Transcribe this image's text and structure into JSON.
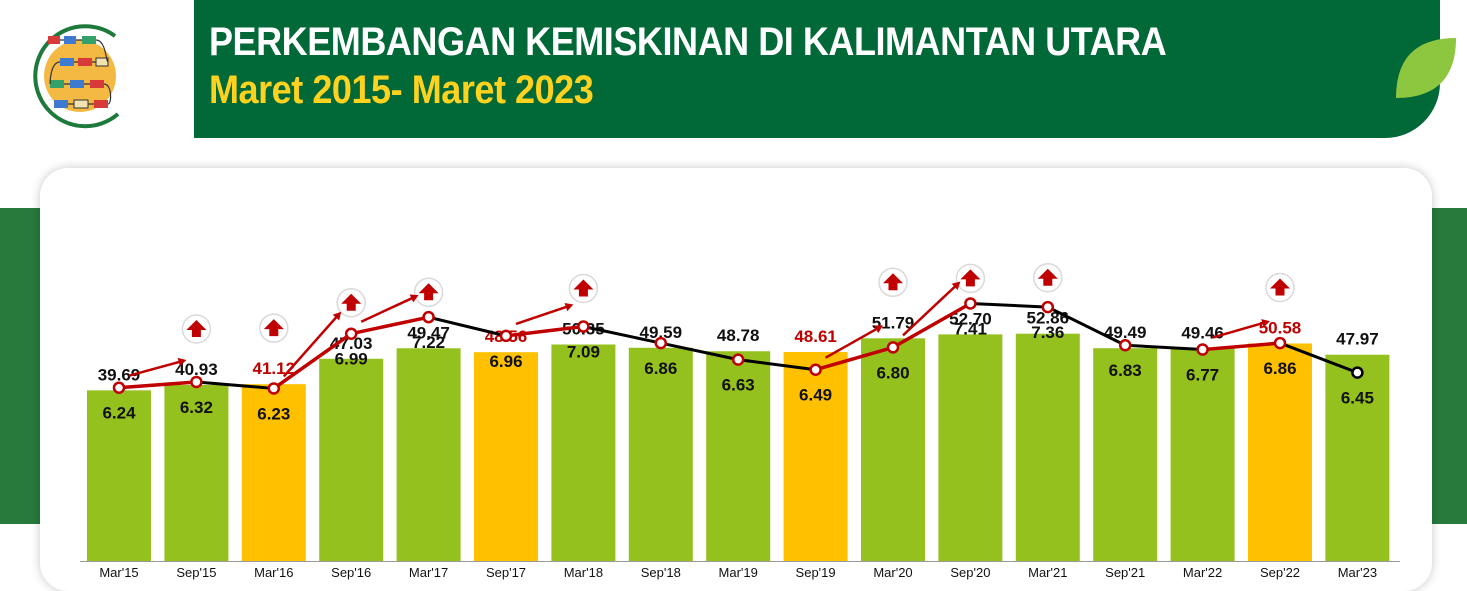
{
  "header": {
    "title": "PERKEMBANGAN KEMISKINAN DI KALIMANTAN UTARA",
    "subtitle": "Maret 2015- Maret 2023"
  },
  "colors": {
    "header_bg": "#006937",
    "subtitle": "#ffd21f",
    "bar_green": "#95c11f",
    "bar_yellow": "#ffc000",
    "label_normal": "#111111",
    "label_highlight": "#c00000",
    "line_up": "#c00000",
    "line_normal": "#000000",
    "arrow": "#c00000"
  },
  "icons": {
    "logo": "process-flowchart-icon",
    "leaf": "leaf-icon",
    "increase": "up-arrow-icon"
  },
  "chart_data": {
    "type": "bar",
    "categories": [
      "Mar'15",
      "Sep'15",
      "Mar'16",
      "Sep'16",
      "Mar'17",
      "Sep'17",
      "Mar'18",
      "Sep'18",
      "Mar'19",
      "Sep'19",
      "Mar'20",
      "Sep'20",
      "Mar'21",
      "Sep'21",
      "Mar'22",
      "Sep'22",
      "Mar'23"
    ],
    "series": [
      {
        "type": "bar",
        "values": [
          39.69,
          40.93,
          41.12,
          47.03,
          49.47,
          48.56,
          50.35,
          49.59,
          48.78,
          48.61,
          51.79,
          52.7,
          52.86,
          49.49,
          49.46,
          50.58,
          47.97
        ],
        "value_labels": [
          "39.69",
          "40.93",
          "41.12",
          "47.03",
          "49.47",
          "48.56",
          "50.35",
          "49.59",
          "48.78",
          "48.61",
          "51.79",
          "52.70",
          "52.86",
          "49.49",
          "49.46",
          "50.58",
          "47.97"
        ],
        "highlighted": [
          false,
          false,
          true,
          false,
          false,
          true,
          false,
          false,
          false,
          true,
          false,
          false,
          false,
          false,
          false,
          true,
          false
        ],
        "increase_marker": [
          false,
          true,
          true,
          true,
          true,
          false,
          true,
          false,
          false,
          false,
          true,
          true,
          true,
          false,
          false,
          true,
          false
        ]
      },
      {
        "type": "line",
        "values": [
          6.24,
          6.32,
          6.23,
          6.99,
          7.22,
          6.96,
          7.09,
          6.86,
          6.63,
          6.49,
          6.8,
          7.41,
          7.36,
          6.83,
          6.77,
          6.86,
          6.45
        ],
        "value_labels": [
          "6.24",
          "6.32",
          "6.23",
          "6.99",
          "7.22",
          "6.96",
          "7.09",
          "6.86",
          "6.63",
          "6.49",
          "6.80",
          "7.41",
          "7.36",
          "6.83",
          "6.77",
          "6.86",
          "6.45"
        ],
        "increasing_segments": [
          [
            0,
            1
          ],
          [
            2,
            3
          ],
          [
            3,
            4
          ],
          [
            5,
            6
          ],
          [
            9,
            10
          ],
          [
            10,
            11
          ],
          [
            14,
            15
          ]
        ]
      }
    ],
    "grid": false,
    "legend": "none"
  }
}
